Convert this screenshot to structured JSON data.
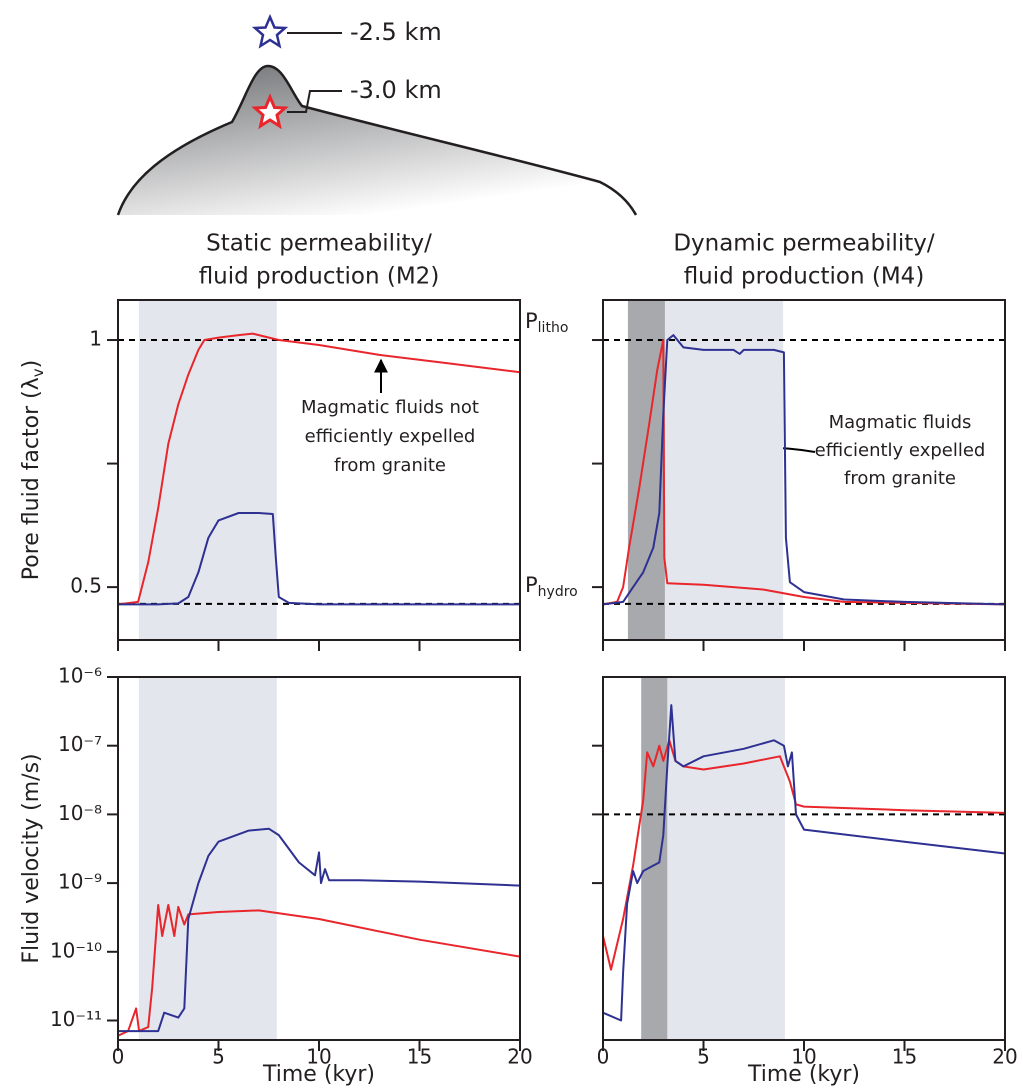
{
  "diagram": {
    "labels": [
      "-2.5 km",
      "-3.0 km"
    ]
  },
  "chart_data": [
    {
      "type": "line",
      "title": [
        "Static permeability/",
        "fluid production (M2)"
      ],
      "ylabel": {
        "text": "Pore fluid factor (λ",
        "subscript": "v",
        "suffix": ")"
      },
      "xlim": [
        0,
        20
      ],
      "xticks": [
        0,
        5,
        10,
        15,
        20
      ],
      "xtick_labels": false,
      "ylim": [
        0.393,
        1.081
      ],
      "yticks": [
        0.5,
        1
      ],
      "yminor_ticks": [
        0.75
      ],
      "ytick_labels": true,
      "log_scale": false,
      "shaded_regions": [
        {
          "x": [
            1.04,
            7.9
          ],
          "color": "#e4e6ee"
        }
      ],
      "reference_lines": [
        {
          "value": 1
        },
        {
          "value": 0.466
        }
      ],
      "annotation": [
        "Magmatic fluids not",
        "efficiently expelled",
        "from granite"
      ],
      "series": [
        {
          "color": "#e8262b",
          "x": [
            0,
            1,
            1.5,
            2,
            2.5,
            3,
            3.5,
            4,
            4.3,
            5,
            6,
            6.7,
            8,
            10,
            13,
            16,
            20
          ],
          "values": [
            0.465,
            0.47,
            0.55,
            0.66,
            0.79,
            0.87,
            0.93,
            0.98,
            1.0,
            1.005,
            1.01,
            1.013,
            1.0,
            0.99,
            0.97,
            0.955,
            0.935
          ]
        },
        {
          "color": "#2e3192",
          "x": [
            0,
            2,
            3,
            3.5,
            4,
            4.5,
            5,
            6,
            7,
            7.7,
            7.85,
            8,
            8.5,
            10,
            20
          ],
          "values": [
            0.465,
            0.465,
            0.467,
            0.48,
            0.53,
            0.6,
            0.635,
            0.65,
            0.65,
            0.648,
            0.56,
            0.48,
            0.468,
            0.465,
            0.465
          ]
        }
      ]
    },
    {
      "type": "line",
      "title": [
        "Dynamic permeability/",
        "fluid production (M4)"
      ],
      "xlim": [
        0,
        20
      ],
      "xticks": [
        0,
        5,
        10,
        15,
        20
      ],
      "xtick_labels": false,
      "ylim": [
        0.393,
        1.081
      ],
      "yticks": [
        0.5,
        1
      ],
      "yminor_ticks": [
        0.75
      ],
      "ytick_labels": false,
      "log_scale": false,
      "shaded_regions": [
        {
          "x": [
            3.08,
            8.96
          ],
          "color": "#e4e6ee"
        },
        {
          "x": [
            1.24,
            3.08
          ],
          "color": "#a7a9ac"
        }
      ],
      "reference_lines": [
        {
          "value": 1,
          "label": "P",
          "subscript": "litho"
        },
        {
          "value": 0.466,
          "label": "P",
          "subscript": "hydro"
        }
      ],
      "annotation": [
        "Magmatic fluids",
        "efficiently expelled",
        "from granite"
      ],
      "series": [
        {
          "color": "#e8262b",
          "x": [
            0,
            0.7,
            1,
            1.3,
            1.8,
            2.3,
            2.7,
            3.0,
            3.05,
            3.2,
            5,
            8,
            10,
            12,
            20
          ],
          "values": [
            0.465,
            0.47,
            0.5,
            0.58,
            0.7,
            0.83,
            0.94,
            1.0,
            0.56,
            0.508,
            0.505,
            0.495,
            0.48,
            0.47,
            0.465
          ]
        },
        {
          "color": "#2e3192",
          "x": [
            0,
            1,
            1.5,
            2,
            2.5,
            2.8,
            3.0,
            3.2,
            3.5,
            4,
            5,
            6.5,
            6.8,
            7,
            8.5,
            9,
            9.1,
            9.3,
            10,
            12,
            15,
            20
          ],
          "values": [
            0.465,
            0.47,
            0.5,
            0.53,
            0.58,
            0.65,
            0.85,
            1.0,
            1.01,
            0.985,
            0.98,
            0.98,
            0.972,
            0.98,
            0.98,
            0.975,
            0.6,
            0.51,
            0.49,
            0.475,
            0.47,
            0.465
          ]
        }
      ]
    },
    {
      "type": "line",
      "ylabel": {
        "text": "Fluid velocity (m/s)"
      },
      "xlabel": "Time (kyr)",
      "xlim": [
        0,
        20
      ],
      "xticks": [
        0,
        5,
        10,
        15,
        20
      ],
      "xtick_labels": true,
      "ylim": [
        5.2e-12,
        1e-06
      ],
      "log_scale": true,
      "ytick_labels": true,
      "yticks": [
        {
          "value": 1e-06,
          "label": "10⁻⁶"
        },
        {
          "value": 1e-07,
          "label": "10⁻⁷"
        },
        {
          "value": 1e-08,
          "label": "10⁻⁸"
        },
        {
          "value": 1e-09,
          "label": "10⁻⁹"
        },
        {
          "value": 1e-10,
          "label": "10⁻¹⁰"
        },
        {
          "value": 1e-11,
          "label": "10⁻¹¹"
        }
      ],
      "shaded_regions": [
        {
          "x": [
            1.04,
            7.9
          ],
          "color": "#e4e6ee"
        }
      ],
      "series": [
        {
          "color": "#e8262b",
          "x": [
            0,
            0.5,
            0.9,
            1.05,
            1.5,
            1.7,
            2,
            2.2,
            2.5,
            2.8,
            3,
            3.3,
            3.5,
            5,
            7,
            10,
            15,
            20
          ],
          "values": [
            6e-12,
            7e-12,
            1.5e-11,
            7e-12,
            8e-12,
            3e-11,
            4.8e-10,
            1.7e-10,
            4.8e-10,
            1.7e-10,
            4.5e-10,
            2.5e-10,
            3.5e-10,
            3.8e-10,
            4e-10,
            3e-10,
            1.5e-10,
            8.5e-11
          ]
        },
        {
          "color": "#2e3192",
          "x": [
            0,
            2,
            2.3,
            3,
            3.3,
            3.5,
            4,
            4.5,
            5,
            6.5,
            7.5,
            8,
            9,
            9.8,
            10,
            10.1,
            10.3,
            10.5,
            12,
            15,
            20
          ],
          "values": [
            7e-12,
            7e-12,
            1.3e-11,
            1.1e-11,
            1.5e-11,
            3e-10,
            1e-09,
            2.5e-09,
            4e-09,
            5.8e-09,
            6.2e-09,
            5e-09,
            2e-09,
            1.3e-09,
            2.8e-09,
            1e-09,
            1.6e-09,
            1.1e-09,
            1.1e-09,
            1.05e-09,
            9.2e-10
          ]
        }
      ]
    },
    {
      "type": "line",
      "xlabel": "Time (kyr)",
      "xlim": [
        0,
        20
      ],
      "xticks": [
        0,
        5,
        10,
        15,
        20
      ],
      "xtick_labels": true,
      "ylim": [
        5.2e-12,
        1e-06
      ],
      "log_scale": true,
      "ytick_labels": false,
      "yticks": [
        1e-07,
        1e-08,
        1e-09
      ],
      "shaded_regions": [
        {
          "x": [
            3.2,
            9.05
          ],
          "color": "#e4e6ee"
        },
        {
          "x": [
            1.9,
            3.2
          ],
          "color": "#a7a9ac"
        }
      ],
      "reference_lines": [
        {
          "value": 1e-08
        }
      ],
      "series": [
        {
          "color": "#e8262b",
          "x": [
            0,
            0.4,
            1,
            1.5,
            2,
            2.2,
            2.5,
            2.8,
            3,
            3.3,
            3.6,
            4,
            5,
            7,
            8.8,
            9.3,
            9.6,
            10,
            15,
            20
          ],
          "values": [
            1.7e-10,
            5.5e-11,
            3e-10,
            1.8e-09,
            1.6e-08,
            8e-08,
            5e-08,
            1e-07,
            6e-08,
            1.2e-07,
            6e-08,
            5e-08,
            4.5e-08,
            5.5e-08,
            7e-08,
            3e-08,
            1.4e-08,
            1.3e-08,
            1.15e-08,
            1.05e-08
          ]
        },
        {
          "color": "#2e3192",
          "x": [
            0,
            0.9,
            1.0,
            1.2,
            1.5,
            1.7,
            2,
            2.8,
            3,
            3.2,
            3.4,
            3.6,
            4,
            5,
            7,
            8.5,
            9,
            9.2,
            9.4,
            9.6,
            10,
            15,
            20
          ],
          "values": [
            1.3e-11,
            1e-11,
            5e-11,
            5e-10,
            1.5e-09,
            1e-09,
            1.5e-09,
            2e-09,
            5e-09,
            5e-08,
            3.9e-07,
            6e-08,
            5e-08,
            7e-08,
            9e-08,
            1.2e-07,
            1e-07,
            5e-08,
            8e-08,
            1e-08,
            6e-09,
            4e-09,
            2.7e-09
          ]
        }
      ]
    }
  ]
}
